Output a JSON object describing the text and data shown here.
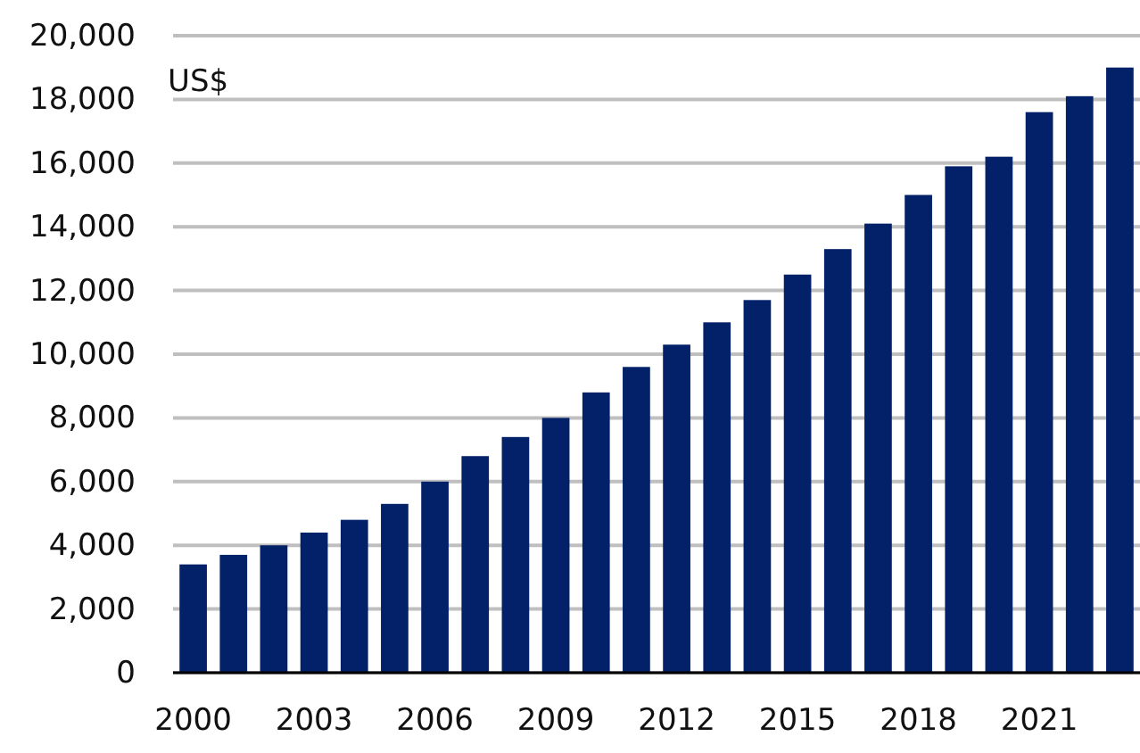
{
  "chart_data": {
    "type": "bar",
    "ylabel": "US$",
    "categories": [
      "2000",
      null,
      null,
      "2003",
      null,
      null,
      "2006",
      null,
      null,
      "2009",
      null,
      null,
      "2012",
      null,
      null,
      "2015",
      null,
      null,
      "2018",
      null,
      null,
      "2021",
      null,
      null
    ],
    "values": [
      3400,
      3700,
      4000,
      4400,
      4800,
      5300,
      6000,
      6800,
      7400,
      8000,
      8800,
      9600,
      10300,
      11000,
      11700,
      12500,
      13300,
      14100,
      15000,
      15900,
      16200,
      17600,
      18100,
      19000
    ],
    "color": "#022169",
    "ylim": [
      0,
      20000
    ],
    "yticks": [
      {
        "value": 0,
        "label": "0"
      },
      {
        "value": 2000,
        "label": "2,000"
      },
      {
        "value": 4000,
        "label": "4,000"
      },
      {
        "value": 6000,
        "label": "6,000"
      },
      {
        "value": 8000,
        "label": "8,000"
      },
      {
        "value": 10000,
        "label": "10,000"
      },
      {
        "value": 12000,
        "label": "12,000"
      },
      {
        "value": 14000,
        "label": "14,000"
      },
      {
        "value": 16000,
        "label": "16,000"
      },
      {
        "value": 18000,
        "label": "18,000"
      },
      {
        "value": 20000,
        "label": "20,000"
      }
    ],
    "grid": "y"
  }
}
